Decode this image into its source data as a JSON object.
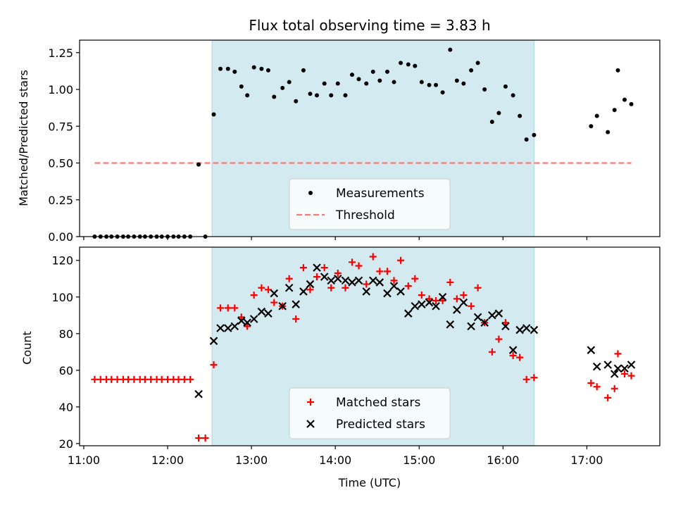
{
  "chart_data": [
    {
      "type": "scatter",
      "title": "Flux total observing time = 3.83 h",
      "xlabel": "",
      "ylabel": "Matched/Predicted stars",
      "xlim": [
        10.95,
        17.87
      ],
      "ylim": [
        0.0,
        1.335
      ],
      "yticks": [
        "0.00",
        "0.25",
        "0.50",
        "0.75",
        "1.00",
        "1.25"
      ],
      "yticks_values": [
        0,
        0.25,
        0.5,
        0.75,
        1.0,
        1.25
      ],
      "xticks_values": [
        11,
        12,
        13,
        14,
        15,
        16,
        17
      ],
      "xticks_labels_shown": false,
      "shaded_interval": {
        "x0": 12.53,
        "x1": 16.37,
        "color": "#d3eaf0"
      },
      "legend": {
        "position": "lower center",
        "entries": [
          "Measurements",
          "Threshold"
        ]
      },
      "series": [
        {
          "name": "Threshold",
          "style": "dashed-line",
          "color": "#f77a7a",
          "x": [
            11.13,
            17.53
          ],
          "y": [
            0.5,
            0.5
          ]
        },
        {
          "name": "Measurements",
          "style": "dot",
          "color": "#000000",
          "points": [
            [
              11.13,
              0.0
            ],
            [
              11.2,
              0.0
            ],
            [
              11.27,
              0.0
            ],
            [
              11.33,
              0.0
            ],
            [
              11.4,
              0.0
            ],
            [
              11.47,
              0.0
            ],
            [
              11.53,
              0.0
            ],
            [
              11.6,
              0.0
            ],
            [
              11.67,
              0.0
            ],
            [
              11.73,
              0.0
            ],
            [
              11.8,
              0.0
            ],
            [
              11.87,
              0.0
            ],
            [
              11.93,
              0.0
            ],
            [
              12.0,
              0.0
            ],
            [
              12.07,
              0.0
            ],
            [
              12.13,
              0.0
            ],
            [
              12.2,
              0.0
            ],
            [
              12.27,
              0.0
            ],
            [
              12.37,
              0.49
            ],
            [
              12.45,
              0.0
            ],
            [
              12.55,
              0.83
            ],
            [
              12.63,
              1.14
            ],
            [
              12.72,
              1.14
            ],
            [
              12.8,
              1.12
            ],
            [
              12.88,
              1.02
            ],
            [
              12.95,
              0.96
            ],
            [
              13.03,
              1.15
            ],
            [
              13.12,
              1.14
            ],
            [
              13.2,
              1.13
            ],
            [
              13.27,
              0.95
            ],
            [
              13.37,
              1.01
            ],
            [
              13.45,
              1.05
            ],
            [
              13.53,
              0.92
            ],
            [
              13.62,
              1.13
            ],
            [
              13.7,
              0.97
            ],
            [
              13.78,
              0.96
            ],
            [
              13.87,
              1.04
            ],
            [
              13.95,
              0.96
            ],
            [
              14.03,
              1.04
            ],
            [
              14.12,
              0.96
            ],
            [
              14.2,
              1.1
            ],
            [
              14.28,
              1.07
            ],
            [
              14.37,
              1.04
            ],
            [
              14.45,
              1.12
            ],
            [
              14.53,
              1.06
            ],
            [
              14.62,
              1.12
            ],
            [
              14.7,
              1.05
            ],
            [
              14.78,
              1.18
            ],
            [
              14.87,
              1.17
            ],
            [
              14.95,
              1.16
            ],
            [
              15.03,
              1.05
            ],
            [
              15.12,
              1.03
            ],
            [
              15.2,
              1.03
            ],
            [
              15.28,
              0.98
            ],
            [
              15.37,
              1.27
            ],
            [
              15.45,
              1.06
            ],
            [
              15.53,
              1.04
            ],
            [
              15.62,
              1.13
            ],
            [
              15.7,
              1.18
            ],
            [
              15.78,
              1.0
            ],
            [
              15.87,
              0.78
            ],
            [
              15.95,
              0.84
            ],
            [
              16.03,
              1.02
            ],
            [
              16.12,
              0.96
            ],
            [
              16.2,
              0.82
            ],
            [
              16.28,
              0.66
            ],
            [
              16.37,
              0.69
            ],
            [
              17.05,
              0.75
            ],
            [
              17.12,
              0.82
            ],
            [
              17.25,
              0.71
            ],
            [
              17.33,
              0.86
            ],
            [
              17.37,
              1.13
            ],
            [
              17.45,
              0.93
            ],
            [
              17.53,
              0.9
            ]
          ]
        }
      ]
    },
    {
      "type": "scatter",
      "title": "",
      "xlabel": "Time (UTC)",
      "ylabel": "Count",
      "xlim": [
        10.95,
        17.87
      ],
      "ylim": [
        18.8,
        127.2
      ],
      "yticks": [
        "20",
        "40",
        "60",
        "80",
        "100",
        "120"
      ],
      "yticks_values": [
        20,
        40,
        60,
        80,
        100,
        120
      ],
      "xticks_values": [
        11,
        12,
        13,
        14,
        15,
        16,
        17
      ],
      "xticks": [
        "11:00",
        "12:00",
        "13:00",
        "14:00",
        "15:00",
        "16:00",
        "17:00"
      ],
      "shaded_interval": {
        "x0": 12.53,
        "x1": 16.37,
        "color": "#d3eaf0"
      },
      "legend": {
        "position": "lower center",
        "entries": [
          "Matched stars",
          "Predicted stars"
        ]
      },
      "series": [
        {
          "name": "Matched stars",
          "style": "plus",
          "color": "#ff0000",
          "points": [
            [
              11.13,
              55
            ],
            [
              11.2,
              55
            ],
            [
              11.27,
              55
            ],
            [
              11.33,
              55
            ],
            [
              11.4,
              55
            ],
            [
              11.47,
              55
            ],
            [
              11.53,
              55
            ],
            [
              11.6,
              55
            ],
            [
              11.67,
              55
            ],
            [
              11.73,
              55
            ],
            [
              11.8,
              55
            ],
            [
              11.87,
              55
            ],
            [
              11.93,
              55
            ],
            [
              12.0,
              55
            ],
            [
              12.07,
              55
            ],
            [
              12.13,
              55
            ],
            [
              12.2,
              55
            ],
            [
              12.27,
              55
            ],
            [
              12.37,
              23
            ],
            [
              12.45,
              23
            ],
            [
              12.55,
              63
            ],
            [
              12.63,
              94
            ],
            [
              12.72,
              94
            ],
            [
              12.8,
              94
            ],
            [
              12.88,
              89
            ],
            [
              12.95,
              84
            ],
            [
              13.03,
              101
            ],
            [
              13.12,
              105
            ],
            [
              13.2,
              104
            ],
            [
              13.27,
              97
            ],
            [
              13.37,
              95
            ],
            [
              13.45,
              110
            ],
            [
              13.53,
              88
            ],
            [
              13.62,
              116
            ],
            [
              13.7,
              104
            ],
            [
              13.78,
              111
            ],
            [
              13.87,
              116
            ],
            [
              13.95,
              105
            ],
            [
              14.03,
              113
            ],
            [
              14.12,
              105
            ],
            [
              14.2,
              119
            ],
            [
              14.28,
              117
            ],
            [
              14.37,
              107
            ],
            [
              14.45,
              122
            ],
            [
              14.53,
              114
            ],
            [
              14.62,
              114
            ],
            [
              14.7,
              109
            ],
            [
              14.78,
              120
            ],
            [
              14.87,
              106
            ],
            [
              14.95,
              110
            ],
            [
              15.03,
              101
            ],
            [
              15.12,
              99
            ],
            [
              15.2,
              98
            ],
            [
              15.28,
              98
            ],
            [
              15.37,
              108
            ],
            [
              15.45,
              99
            ],
            [
              15.53,
              101
            ],
            [
              15.62,
              95
            ],
            [
              15.7,
              105
            ],
            [
              15.78,
              86
            ],
            [
              15.87,
              70
            ],
            [
              15.95,
              77
            ],
            [
              16.03,
              86
            ],
            [
              16.12,
              68
            ],
            [
              16.2,
              67
            ],
            [
              16.28,
              55
            ],
            [
              16.37,
              56
            ],
            [
              17.05,
              53
            ],
            [
              17.12,
              51
            ],
            [
              17.25,
              45
            ],
            [
              17.33,
              50
            ],
            [
              17.37,
              69
            ],
            [
              17.45,
              58
            ],
            [
              17.53,
              57
            ]
          ]
        },
        {
          "name": "Predicted stars",
          "style": "x",
          "color": "#000000",
          "points": [
            [
              12.37,
              47
            ],
            [
              12.55,
              76
            ],
            [
              12.63,
              83
            ],
            [
              12.72,
              83
            ],
            [
              12.8,
              84
            ],
            [
              12.88,
              87
            ],
            [
              12.95,
              86
            ],
            [
              13.03,
              88
            ],
            [
              13.12,
              92
            ],
            [
              13.2,
              91
            ],
            [
              13.27,
              102
            ],
            [
              13.37,
              95
            ],
            [
              13.45,
              105
            ],
            [
              13.53,
              96
            ],
            [
              13.62,
              103
            ],
            [
              13.7,
              107
            ],
            [
              13.78,
              116
            ],
            [
              13.87,
              111
            ],
            [
              13.95,
              109
            ],
            [
              14.03,
              110
            ],
            [
              14.12,
              109
            ],
            [
              14.2,
              108
            ],
            [
              14.28,
              109
            ],
            [
              14.37,
              103
            ],
            [
              14.45,
              109
            ],
            [
              14.53,
              108
            ],
            [
              14.62,
              102
            ],
            [
              14.7,
              106
            ],
            [
              14.78,
              103
            ],
            [
              14.87,
              91
            ],
            [
              14.95,
              95
            ],
            [
              15.03,
              96
            ],
            [
              15.12,
              97
            ],
            [
              15.2,
              95
            ],
            [
              15.28,
              100
            ],
            [
              15.37,
              85
            ],
            [
              15.45,
              93
            ],
            [
              15.53,
              97
            ],
            [
              15.62,
              84
            ],
            [
              15.7,
              89
            ],
            [
              15.78,
              86
            ],
            [
              15.87,
              90
            ],
            [
              15.95,
              91
            ],
            [
              16.03,
              84
            ],
            [
              16.12,
              71
            ],
            [
              16.2,
              82
            ],
            [
              16.28,
              83
            ],
            [
              16.37,
              82
            ],
            [
              17.05,
              71
            ],
            [
              17.12,
              62
            ],
            [
              17.25,
              63
            ],
            [
              17.33,
              58
            ],
            [
              17.37,
              61
            ],
            [
              17.45,
              61
            ],
            [
              17.53,
              63
            ]
          ]
        }
      ]
    }
  ]
}
